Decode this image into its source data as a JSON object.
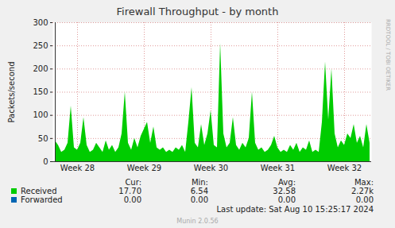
{
  "chart_data": {
    "type": "area",
    "title": "Firewall Throughput - by month",
    "y_label": "Packets/second",
    "categories": [
      null,
      null,
      null,
      null,
      null,
      null,
      null,
      "Week 28",
      null,
      null,
      null,
      null,
      null,
      null,
      null,
      null,
      null,
      null,
      null,
      null,
      null,
      null,
      null,
      null,
      null,
      null,
      null,
      null,
      "Week 29",
      null,
      null,
      null,
      null,
      null,
      null,
      null,
      null,
      null,
      null,
      null,
      null,
      null,
      null,
      null,
      null,
      null,
      null,
      null,
      null,
      "Week 30",
      null,
      null,
      null,
      null,
      null,
      null,
      null,
      null,
      null,
      null,
      null,
      null,
      null,
      null,
      null,
      null,
      null,
      null,
      null,
      null,
      "Week 31",
      null,
      null,
      null,
      null,
      null,
      null,
      null,
      null,
      null,
      null,
      null,
      null,
      null,
      null,
      null,
      null,
      null,
      null,
      null,
      null,
      "Week 32",
      null,
      null,
      null,
      null,
      null,
      null,
      null,
      null
    ],
    "series": [
      {
        "name": "Received",
        "color": "#00cc00",
        "stats": [
          "17.70",
          "6.54",
          "32.58",
          "2.27k"
        ],
        "values": [
          45,
          35,
          20,
          25,
          40,
          120,
          30,
          25,
          40,
          95,
          35,
          20,
          25,
          40,
          30,
          20,
          45,
          25,
          35,
          20,
          30,
          60,
          150,
          40,
          25,
          50,
          30,
          55,
          70,
          85,
          40,
          75,
          30,
          25,
          30,
          20,
          25,
          20,
          30,
          25,
          35,
          20,
          85,
          160,
          40,
          30,
          80,
          35,
          60,
          110,
          35,
          30,
          255,
          60,
          30,
          40,
          95,
          35,
          25,
          40,
          30,
          50,
          150,
          40,
          25,
          30,
          20,
          25,
          35,
          55,
          30,
          20,
          25,
          20,
          35,
          25,
          40,
          20,
          30,
          25,
          45,
          20,
          25,
          20,
          85,
          215,
          90,
          200,
          60,
          30,
          45,
          35,
          60,
          50,
          80,
          40,
          55,
          30,
          80,
          40
        ]
      },
      {
        "name": "Forwarded",
        "color": "#0066b3",
        "stats": [
          "0.00",
          "0.00",
          "0.00",
          "0.00"
        ],
        "values": [
          0,
          0,
          0,
          0,
          0,
          0,
          0,
          0,
          0,
          0,
          0,
          0,
          0,
          0,
          0,
          0,
          0,
          0,
          0,
          0,
          0,
          0,
          0,
          0,
          0,
          0,
          0,
          0,
          0,
          0,
          0,
          0,
          0,
          0,
          0,
          0,
          0,
          0,
          0,
          0,
          0,
          0,
          0,
          0,
          0,
          0,
          0,
          0,
          0,
          0,
          0,
          0,
          0,
          0,
          0,
          0,
          0,
          0,
          0,
          0,
          0,
          0,
          0,
          0,
          0,
          0,
          0,
          0,
          0,
          0,
          0,
          0,
          0,
          0,
          0,
          0,
          0,
          0,
          0,
          0,
          0,
          0,
          0,
          0,
          0,
          0,
          0,
          0,
          0,
          0,
          0,
          0,
          0,
          0,
          0,
          0,
          0,
          0,
          0,
          0
        ]
      }
    ],
    "stats_columns": [
      "Cur:",
      "Min:",
      "Avg:",
      "Max:"
    ],
    "ylim": [
      0,
      300
    ],
    "yticks": [
      0,
      50,
      100,
      150,
      200,
      250,
      300
    ],
    "grid": true,
    "legend": "bottom",
    "annotations": {
      "last_update": "Last update: Sat Aug 10 15:25:17 2024",
      "generator": "Munin 2.0.56",
      "watermark": "RRDTOOL / TOBI OETIKER"
    }
  }
}
